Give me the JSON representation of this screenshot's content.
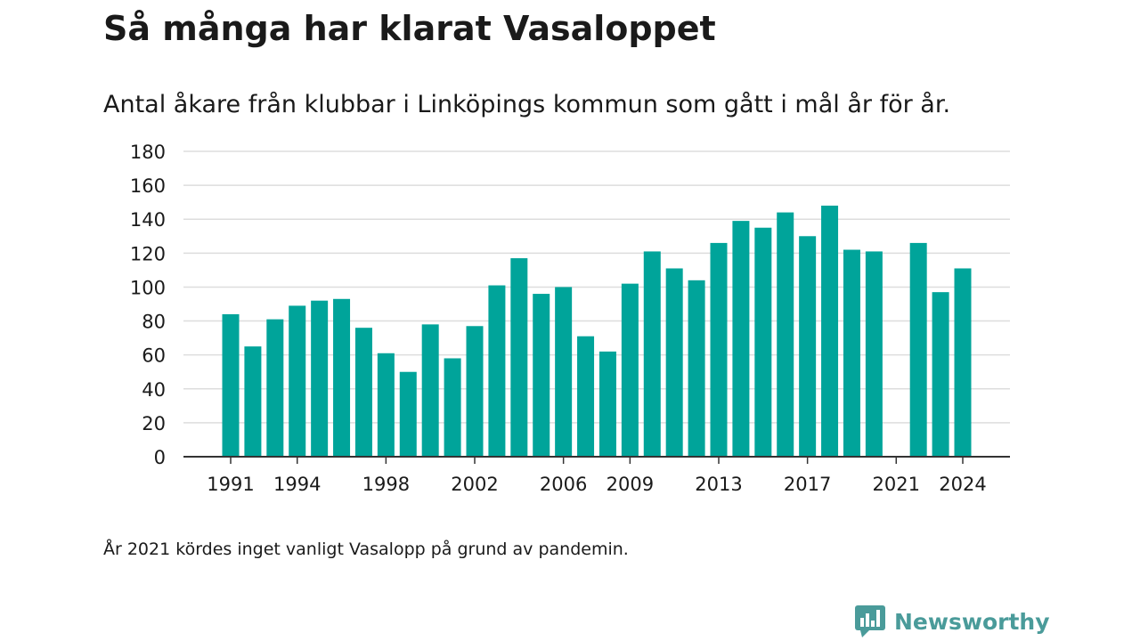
{
  "header": {
    "title": "Så många har klarat Vasaloppet",
    "subtitle": "Antal åkare från klubbar i Linköpings kommun som gått i mål år för år."
  },
  "footer": {
    "note": "År 2021 kördes inget vanligt Vasalopp på grund av pandemin.",
    "brand": "Newsworthy",
    "brand_icon": "newsworthy-logo-icon"
  },
  "colors": {
    "bar": "#00a49a",
    "grid": "#dddddd",
    "axis": "#333333",
    "text": "#1a1a1a",
    "brand": "#4a9b9a"
  },
  "chart_data": {
    "type": "bar",
    "title": "Så många har klarat Vasaloppet",
    "subtitle": "Antal åkare från klubbar i Linköpings kommun som gått i mål år för år.",
    "xlabel": "",
    "ylabel": "",
    "ylim": [
      0,
      180
    ],
    "yticks": [
      0,
      20,
      40,
      60,
      80,
      100,
      120,
      140,
      160,
      180
    ],
    "xticks": [
      1991,
      1994,
      1998,
      2002,
      2006,
      2009,
      2013,
      2017,
      2021,
      2024
    ],
    "grid": true,
    "legend": "none",
    "categories": [
      1991,
      1992,
      1993,
      1994,
      1995,
      1996,
      1997,
      1998,
      1999,
      2000,
      2001,
      2002,
      2003,
      2004,
      2005,
      2006,
      2007,
      2008,
      2009,
      2010,
      2011,
      2012,
      2013,
      2014,
      2015,
      2016,
      2017,
      2018,
      2019,
      2020,
      2021,
      2022,
      2023,
      2024
    ],
    "values": [
      84,
      65,
      81,
      89,
      92,
      93,
      76,
      61,
      50,
      78,
      58,
      77,
      101,
      117,
      96,
      100,
      71,
      62,
      102,
      121,
      111,
      104,
      126,
      139,
      135,
      144,
      130,
      148,
      122,
      121,
      null,
      126,
      97,
      111
    ]
  }
}
